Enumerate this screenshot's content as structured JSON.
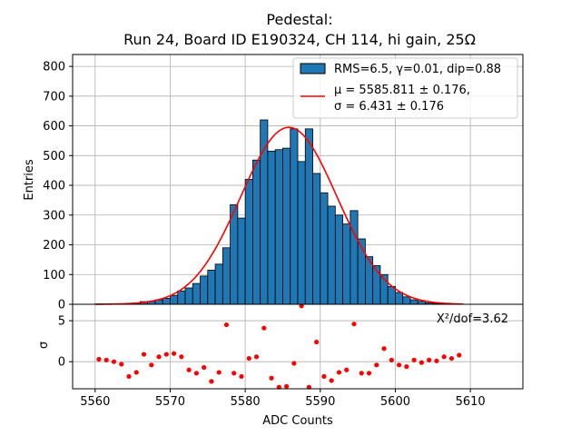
{
  "chart_data": {
    "type": "bar",
    "title_line1": "Pedestal:",
    "title_line2": "Run 24, Board ID E190324, CH 114, hi gain, 25Ω",
    "xlabel": "ADC Counts",
    "ylabel_top": "Entries",
    "ylabel_bottom": "σ",
    "xlim": [
      5557,
      5617
    ],
    "ylim_top": [
      0,
      840
    ],
    "ylim_bottom": [
      -3.3,
      7.0
    ],
    "x_ticks": [
      5560,
      5570,
      5580,
      5590,
      5600,
      5610
    ],
    "x_tick_labels": [
      "5560",
      "5570",
      "5580",
      "5590",
      "5600",
      "5610"
    ],
    "y_ticks_top": [
      0,
      100,
      200,
      300,
      400,
      500,
      600,
      700,
      800
    ],
    "y_tick_labels_top": [
      "0",
      "100",
      "200",
      "300",
      "400",
      "500",
      "600",
      "700",
      "800"
    ],
    "y_ticks_bottom": [
      0,
      5
    ],
    "y_tick_labels_bottom": [
      "0",
      "5"
    ],
    "grid": true,
    "legend_position": "top-right",
    "bin_width": 1,
    "histogram": {
      "name": "RMS=6.5, γ=0.01, dip=0.88",
      "color": "#1f77b4",
      "edgecolor": "#000000",
      "bin_lefts": [
        5560,
        5561,
        5562,
        5563,
        5564,
        5565,
        5566,
        5567,
        5568,
        5569,
        5570,
        5571,
        5572,
        5573,
        5574,
        5575,
        5576,
        5577,
        5578,
        5579,
        5580,
        5581,
        5582,
        5583,
        5584,
        5585,
        5586,
        5587,
        5588,
        5589,
        5590,
        5591,
        5592,
        5593,
        5594,
        5595,
        5596,
        5597,
        5598,
        5599,
        5600,
        5601,
        5602,
        5603,
        5604,
        5605,
        5606,
        5607,
        5608
      ],
      "values": [
        1,
        1,
        2,
        2,
        3,
        3,
        9,
        10,
        15,
        20,
        30,
        45,
        55,
        70,
        95,
        115,
        135,
        190,
        335,
        290,
        420,
        485,
        620,
        515,
        520,
        525,
        590,
        480,
        590,
        440,
        375,
        330,
        300,
        270,
        315,
        220,
        160,
        130,
        100,
        60,
        40,
        25,
        15,
        10,
        5,
        3,
        2,
        1,
        1
      ]
    },
    "fit": {
      "name_line1": "μ = 5585.811 ± 0.176,",
      "name_line2": "σ = 6.431 ± 0.176",
      "color": "#ff0000",
      "mu": 5585.811,
      "sigma": 6.431,
      "amplitude": 595,
      "x_range": [
        5560,
        5609
      ]
    },
    "residuals": {
      "color": "#ff0000",
      "x": [
        5560.5,
        5561.5,
        5562.5,
        5563.5,
        5564.5,
        5565.5,
        5566.5,
        5567.5,
        5568.5,
        5569.5,
        5570.5,
        5571.5,
        5572.5,
        5573.5,
        5574.5,
        5575.5,
        5576.5,
        5577.5,
        5578.5,
        5579.5,
        5580.5,
        5581.5,
        5582.5,
        5583.5,
        5584.5,
        5585.5,
        5586.5,
        5587.5,
        5588.5,
        5589.5,
        5590.5,
        5591.5,
        5592.5,
        5593.5,
        5594.5,
        5595.5,
        5596.5,
        5597.5,
        5598.5,
        5599.5,
        5600.5,
        5601.5,
        5602.5,
        5603.5,
        5604.5,
        5605.5,
        5606.5,
        5607.5,
        5608.5
      ],
      "values": [
        0.3,
        0.2,
        0.0,
        -0.3,
        -1.8,
        -1.3,
        0.9,
        -0.4,
        0.6,
        0.9,
        1.0,
        0.6,
        -1.0,
        -1.4,
        -0.7,
        -2.4,
        -1.3,
        4.5,
        -1.4,
        -1.8,
        0.4,
        0.6,
        4.1,
        -2.0,
        -3.1,
        -3.0,
        -0.2,
        6.8,
        -3.1,
        2.4,
        -1.8,
        -2.3,
        -1.3,
        -1.0,
        4.6,
        -1.4,
        -1.4,
        -0.4,
        1.6,
        0.2,
        -0.4,
        -0.6,
        0.2,
        -0.1,
        0.2,
        0.1,
        0.6,
        0.4,
        0.8
      ]
    },
    "annotation": "X²/dof=3.62"
  }
}
